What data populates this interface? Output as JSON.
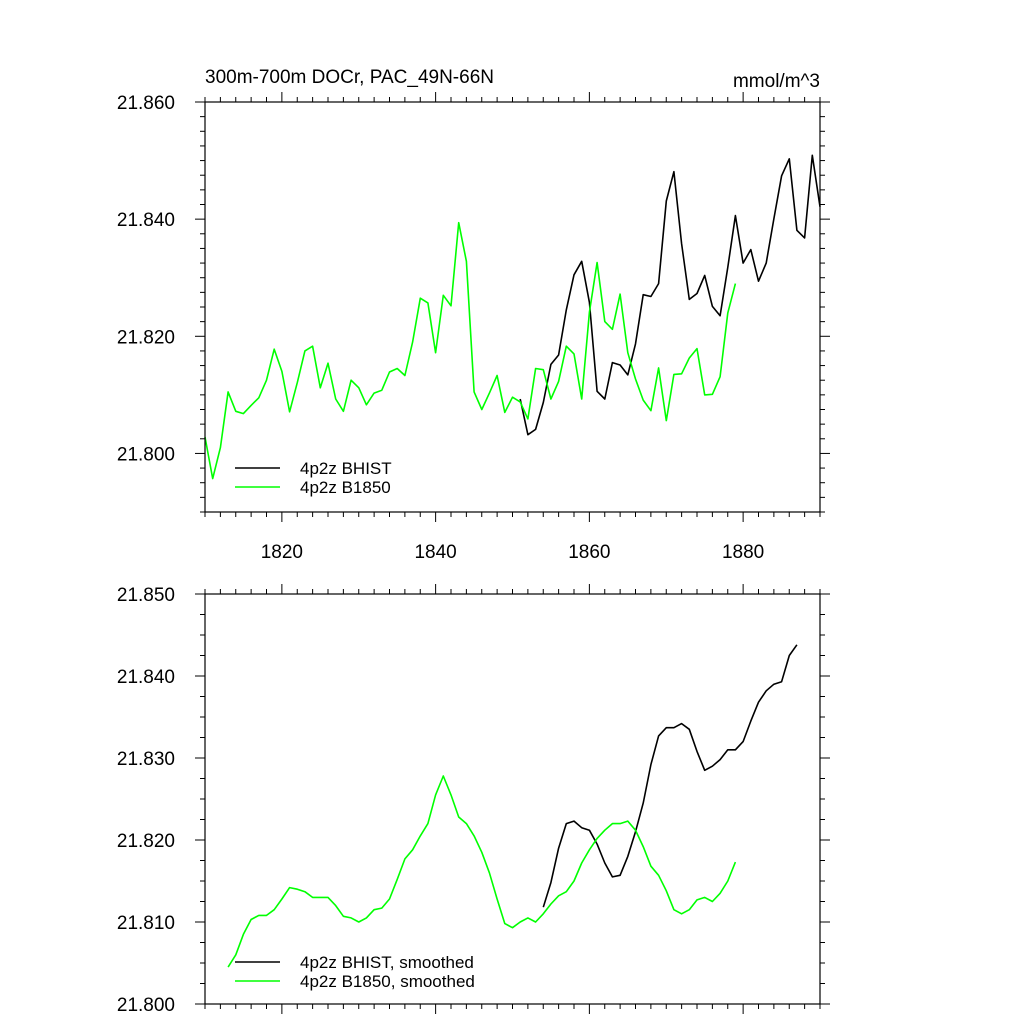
{
  "chart_data": [
    {
      "type": "line",
      "title_left": "300m-700m DOCr, PAC_49N-66N",
      "title_right": "mmol/m^3",
      "xlim": [
        1810,
        1890
      ],
      "ylim": [
        21.79,
        21.86
      ],
      "x_ticks": [
        1820,
        1840,
        1860,
        1880
      ],
      "x_tick_labels": [
        "1820",
        "1840",
        "1860",
        "1880"
      ],
      "y_ticks": [
        21.8,
        21.82,
        21.84,
        21.86
      ],
      "y_tick_labels": [
        "21.800",
        "21.820",
        "21.840",
        "21.860"
      ],
      "show_x_tick_labels": true,
      "grid": false,
      "legend_position": "bottom-left",
      "series": [
        {
          "name": "4p2z BHIST",
          "color": "#000000",
          "x_start": 1851,
          "values": [
            21.8093,
            21.8032,
            21.8041,
            21.8087,
            21.8152,
            21.8168,
            21.8245,
            21.8305,
            21.8328,
            21.8258,
            21.8106,
            21.8093,
            21.8155,
            21.8151,
            21.8134,
            21.8187,
            21.8271,
            21.8268,
            21.829,
            21.8431,
            21.8481,
            21.8358,
            21.8263,
            21.8273,
            21.8304,
            21.8251,
            21.8235,
            21.8318,
            21.8406,
            21.8325,
            21.8348,
            21.8294,
            21.8325,
            21.8401,
            21.8474,
            21.8503,
            21.8381,
            21.8368,
            21.8509,
            21.8421
          ]
        },
        {
          "name": "4p2z B1850",
          "color": "#00ff00",
          "x_start": 1810,
          "values": [
            21.8028,
            21.7957,
            21.801,
            21.8105,
            21.8072,
            21.8068,
            21.8082,
            21.8095,
            21.8125,
            21.8178,
            21.814,
            21.8071,
            21.8121,
            21.8175,
            21.8183,
            21.8112,
            21.8154,
            21.8093,
            21.8072,
            21.8125,
            21.8112,
            21.8083,
            21.8103,
            21.8108,
            21.8139,
            21.8145,
            21.8133,
            21.819,
            21.8265,
            21.8257,
            21.8172,
            21.827,
            21.8252,
            21.8394,
            21.8328,
            21.8105,
            21.8075,
            21.8103,
            21.8133,
            21.807,
            21.8096,
            21.8088,
            21.8059,
            21.8145,
            21.8143,
            21.8093,
            21.8123,
            21.8183,
            21.817,
            21.8093,
            21.8241,
            21.8326,
            21.8225,
            21.8212,
            21.8272,
            21.8172,
            21.8127,
            21.8091,
            21.8073,
            21.8146,
            21.8056,
            21.8135,
            21.8136,
            21.8163,
            21.8179,
            21.81,
            21.8101,
            21.8131,
            21.824,
            21.829
          ]
        }
      ]
    },
    {
      "type": "line",
      "xlim": [
        1810,
        1890
      ],
      "ylim": [
        21.8,
        21.85
      ],
      "x_ticks": [
        1820,
        1840,
        1860,
        1880
      ],
      "y_ticks": [
        21.8,
        21.81,
        21.82,
        21.83,
        21.84,
        21.85
      ],
      "y_tick_labels": [
        "21.800",
        "21.810",
        "21.820",
        "21.830",
        "21.840",
        "21.850"
      ],
      "show_x_tick_labels": false,
      "grid": false,
      "legend_position": "bottom-left",
      "series": [
        {
          "name": "4p2z BHIST, smoothed",
          "color": "#000000",
          "x_start": 1854,
          "values": [
            21.8118,
            21.8148,
            21.819,
            21.822,
            21.8223,
            21.8215,
            21.8212,
            21.8195,
            21.8172,
            21.8155,
            21.8157,
            21.818,
            21.821,
            21.8245,
            21.8292,
            21.8327,
            21.8337,
            21.8337,
            21.8342,
            21.8335,
            21.8308,
            21.8285,
            21.829,
            21.8298,
            21.831,
            21.831,
            21.832,
            21.8345,
            21.8368,
            21.8382,
            21.839,
            21.8393,
            21.8425,
            21.8438
          ]
        },
        {
          "name": "4p2z B1850, smoothed",
          "color": "#00ff00",
          "x_start": 1813,
          "values": [
            21.8045,
            21.806,
            21.8085,
            21.8103,
            21.8108,
            21.8108,
            21.8115,
            21.8128,
            21.8142,
            21.814,
            21.8137,
            21.813,
            21.813,
            21.813,
            21.812,
            21.8107,
            21.8105,
            21.81,
            21.8105,
            21.8115,
            21.8117,
            21.8128,
            21.8152,
            21.8177,
            21.8188,
            21.8205,
            21.822,
            21.8255,
            21.8278,
            21.8255,
            21.8228,
            21.822,
            21.8205,
            21.8185,
            21.816,
            21.8128,
            21.8098,
            21.8093,
            21.81,
            21.8105,
            21.81,
            21.811,
            21.8122,
            21.8132,
            21.8137,
            21.815,
            21.8172,
            21.8188,
            21.8202,
            21.8212,
            21.822,
            21.822,
            21.8223,
            21.8212,
            21.8192,
            21.8168,
            21.8157,
            21.8138,
            21.8115,
            21.811,
            21.8115,
            21.8127,
            21.813,
            21.8125,
            21.8135,
            21.815,
            21.8173
          ]
        }
      ]
    }
  ]
}
